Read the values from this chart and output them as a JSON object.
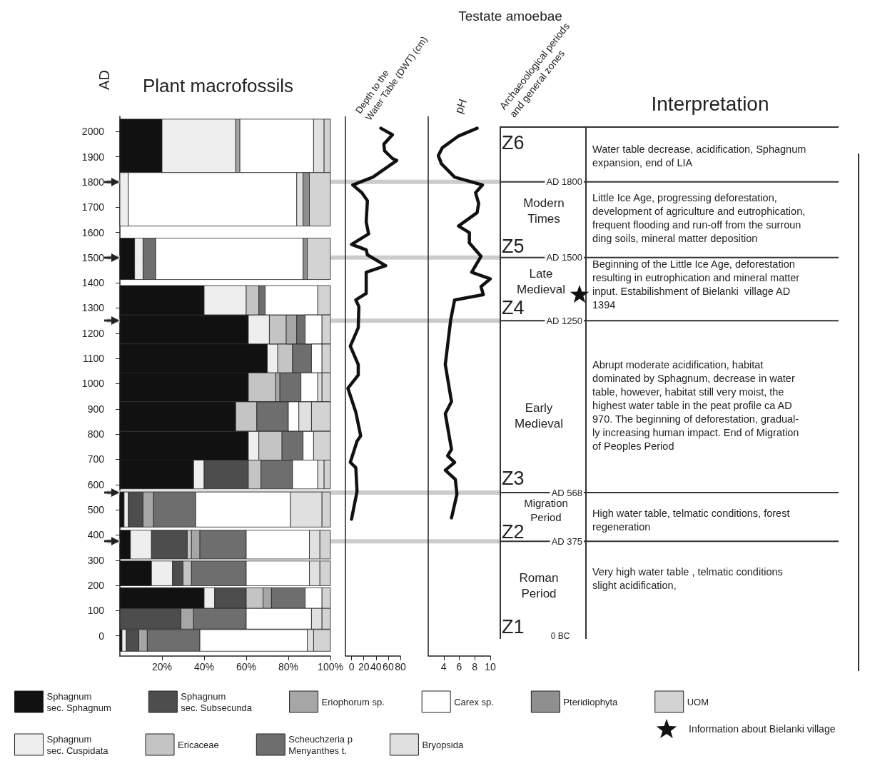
{
  "chart_data": [
    {
      "type": "bar",
      "orientation": "horizontal",
      "stacked": true,
      "title": "Plant macrofossils",
      "ylabel": "AD",
      "x": [
        1943,
        1731,
        1495,
        1331,
        1215,
        1100,
        986,
        870,
        754,
        640,
        501,
        362,
        248,
        150,
        68,
        -18
      ],
      "series": [
        {
          "name": "Sphagnum\nsec. Sphagnum",
          "color": "#111111",
          "values": [
            20,
            0,
            7,
            40,
            61,
            70,
            61,
            55,
            61,
            35,
            2,
            5,
            15,
            40,
            0,
            1
          ]
        },
        {
          "name": "Sphagnum\nsec. Cuspidata",
          "color": "#eeeeee",
          "values": [
            35,
            4,
            4,
            20,
            10,
            5,
            0,
            0,
            5,
            5,
            2,
            10,
            10,
            5,
            0,
            2
          ]
        },
        {
          "name": "Sphagnum\nsec. Subsecunda",
          "color": "#4d4d4d",
          "values": [
            0,
            0,
            0,
            0,
            0,
            0,
            0,
            0,
            0,
            21,
            7,
            17,
            5,
            15,
            29,
            6
          ]
        },
        {
          "name": "Ericaceae",
          "color": "#c4c4c4",
          "values": [
            0,
            0,
            0,
            6,
            8,
            7,
            13,
            10,
            11,
            6,
            0,
            2,
            4,
            8,
            0,
            0
          ]
        },
        {
          "name": "Eriophorum sp.",
          "color": "#a6a6a6",
          "values": [
            2,
            0,
            0,
            0,
            5,
            0,
            2,
            0,
            0,
            0,
            5,
            4,
            0,
            4,
            6,
            4
          ]
        },
        {
          "name": "Scheuchzeria p\nMenyanthes t.",
          "color": "#6e6e6e",
          "values": [
            0,
            0,
            6,
            3,
            4,
            9,
            10,
            15,
            10,
            15,
            20,
            22,
            26,
            16,
            25,
            25
          ]
        },
        {
          "name": "Carex sp.",
          "color": "#ffffff",
          "values": [
            35,
            80,
            70,
            25,
            8,
            5,
            8,
            5,
            5,
            12,
            45,
            30,
            30,
            8,
            31,
            51
          ]
        },
        {
          "name": "Bryopsida",
          "color": "#e0e0e0",
          "values": [
            5,
            3,
            0,
            0,
            0,
            0,
            2,
            6,
            0,
            3,
            15,
            5,
            5,
            0,
            5,
            3
          ]
        },
        {
          "name": "Pteridiophyta",
          "color": "#8f8f8f",
          "values": [
            0,
            3,
            2,
            0,
            0,
            0,
            0,
            0,
            0,
            0,
            0,
            0,
            0,
            0,
            0,
            0
          ]
        },
        {
          "name": "UOM",
          "color": "#d3d3d3",
          "values": [
            3,
            10,
            11,
            6,
            4,
            4,
            4,
            9,
            8,
            3,
            4,
            5,
            5,
            4,
            4,
            8
          ]
        }
      ],
      "xlim": [
        0,
        100
      ],
      "xticks": [
        {
          "value": 20,
          "label": "20%"
        },
        {
          "value": 40,
          "label": "40%"
        },
        {
          "value": 60,
          "label": "60%"
        },
        {
          "value": 80,
          "label": "80%"
        },
        {
          "value": 100,
          "label": "100%"
        }
      ],
      "ylim": [
        -80,
        2060
      ],
      "yticks": [
        0,
        100,
        200,
        300,
        400,
        500,
        600,
        700,
        800,
        900,
        1000,
        1100,
        1200,
        1300,
        1400,
        1500,
        1600,
        1700,
        1800,
        1900,
        2000
      ],
      "ref_lines": [
        {
          "axis": "y",
          "value": 1800,
          "label": "AD 1800",
          "color": "#cccccc"
        },
        {
          "axis": "y",
          "value": 1500,
          "label": "AD 1500",
          "color": "#cccccc"
        },
        {
          "axis": "y",
          "value": 1250,
          "label": "AD 1250",
          "color": "#cccccc"
        },
        {
          "axis": "y",
          "value": 568,
          "label": "AD 568",
          "color": "#cccccc"
        },
        {
          "axis": "y",
          "value": 375,
          "label": "AD 375",
          "color": "#cccccc"
        }
      ],
      "grid": false,
      "legend": "bottom"
    },
    {
      "type": "line",
      "orientation": "horizontal",
      "title": "Depth to the\nWater Table (DWT) (cm)",
      "x": [
        2013,
        1987,
        1950,
        1924,
        1893,
        1885,
        1819,
        1788,
        1757,
        1725,
        1641,
        1594,
        1552,
        1531,
        1511,
        1468,
        1442,
        1358,
        1332,
        1306,
        1222,
        1149,
        1076,
        1034,
        982,
        887,
        793,
        772,
        688,
        667,
        573,
        463
      ],
      "series": [
        {
          "color": "#111111",
          "values": [
            48,
            67,
            53,
            54,
            67,
            74,
            35,
            2,
            17,
            26,
            24,
            28,
            0,
            24,
            26,
            56,
            24,
            24,
            7,
            12,
            11,
            -2,
            11,
            11,
            -6,
            7,
            15,
            9,
            -2,
            7,
            9,
            0
          ]
        }
      ],
      "xlim": [
        -10,
        80
      ],
      "xticks": [
        0,
        20,
        40,
        60,
        80
      ],
      "ylim": [
        -80,
        2060
      ],
      "tick_labels": "x",
      "grid": false,
      "marker": "none",
      "line_style": "solid"
    },
    {
      "type": "line",
      "orientation": "horizontal",
      "title": "pH",
      "subtitle": "Testate amoebae",
      "x": [
        2013,
        1982,
        1935,
        1904,
        1872,
        1819,
        1788,
        1757,
        1715,
        1678,
        1625,
        1599,
        1558,
        1505,
        1442,
        1416,
        1385,
        1353,
        1332,
        1254,
        1076,
        929,
        881,
        740,
        714,
        688,
        657,
        620,
        562,
        468
      ],
      "series": [
        {
          "color": "#111111",
          "values": [
            8.3,
            5.9,
            3.8,
            3.3,
            3.7,
            5.4,
            9.0,
            8.1,
            8.5,
            8.3,
            5.9,
            7.3,
            7.3,
            8.8,
            7.6,
            10.0,
            8.8,
            9.1,
            5.4,
            4.9,
            4.2,
            5.0,
            4.2,
            5.0,
            4.5,
            5.4,
            4.2,
            5.5,
            5.7,
            5.0
          ]
        }
      ],
      "xlim": [
        2,
        10
      ],
      "xticks": [
        4,
        6,
        8,
        10
      ],
      "ylim": [
        -80,
        2060
      ],
      "tick_labels": "x",
      "grid": false,
      "marker": "none",
      "line_style": "solid"
    },
    {
      "type": "other",
      "xlabel": "Archaeoological periods\nand general zones",
      "annotations": [
        "Z6",
        "Modern\nTimes",
        "Z5",
        "Late\nMedieval",
        "Z4",
        "Early\nMedieval",
        "Z3",
        "Migration\nPeriod",
        "Z2",
        "Roman\nPeriod",
        "Z1",
        "0 BC",
        "Information about Bielanki village"
      ]
    },
    {
      "type": "other",
      "title": "Interpretation",
      "annotations": [
        "Water table decrease, acidification, Sphagnum\nexpansion, end of LIA",
        "Little Ice Age, progressing deforestation,\ndevelopment of agriculture and eutrophication,\nfrequent flooding and run-off from the surroun\nding soils, mineral matter deposition",
        "Beginning of the Little Ice Age, deforestation\nresulting in eutrophication and mineral matter\ninput. Estabilishment of Bielanki  village AD\n1394",
        "Abrupt moderate acidification, habitat\ndominated by Sphagnum, decrease in water\ntable, however, habitat still very moist, the\nhighest water table in the peat profile ca AD\n970. The beginning of deforestation, gradual-\nly increasing human impact. End of Migration\nof Peoples Period",
        "High water table, telmatic conditions, forest\nregeneration",
        "Very high water table , telmatic conditions\nslight acidification,"
      ]
    }
  ]
}
